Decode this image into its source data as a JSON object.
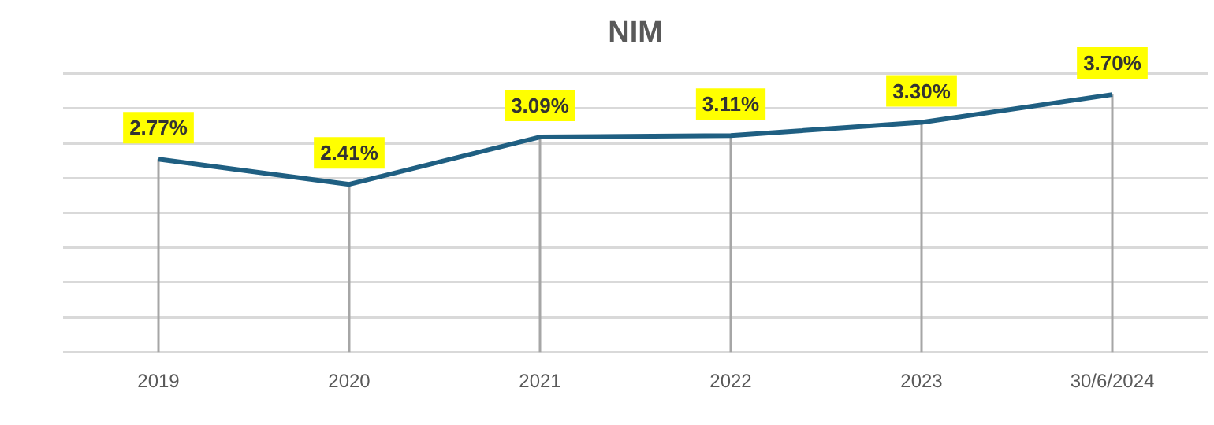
{
  "chart_data": {
    "type": "line",
    "title": "NIM",
    "categories": [
      "2019",
      "2020",
      "2021",
      "2022",
      "2023",
      "30/6/2024"
    ],
    "series": [
      {
        "color": "#1f5f82",
        "values": [
          2.77,
          2.41,
          3.09,
          3.11,
          3.3,
          3.7
        ],
        "value_labels": [
          "2.77%",
          "2.41%",
          "3.09%",
          "3.11%",
          "3.30%",
          "3.70%"
        ]
      }
    ],
    "ylim": [
      0,
      4
    ],
    "yticks": [
      {
        "value": 0,
        "label": null
      },
      {
        "value": 0.5,
        "label": null
      },
      {
        "value": 1,
        "label": null
      },
      {
        "value": 1.5,
        "label": null
      },
      {
        "value": 2,
        "label": null
      },
      {
        "value": 2.5,
        "label": null
      },
      {
        "value": 3,
        "label": null
      },
      {
        "value": 3.5,
        "label": null
      },
      {
        "value": 4,
        "label": null
      }
    ],
    "grid": true,
    "tick_labels": "x",
    "legend": false,
    "marker": "none",
    "line_style": "solid"
  }
}
